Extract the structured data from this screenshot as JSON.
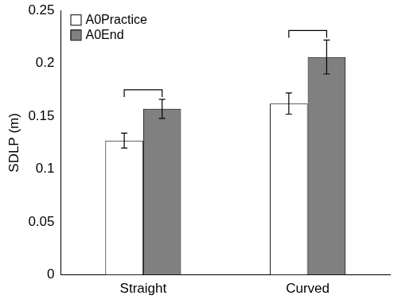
{
  "chart_data": {
    "type": "bar",
    "y_label": "SDLP (m)",
    "categories": [
      "Straight",
      "Curved"
    ],
    "series": [
      {
        "name": "A0Practice",
        "color": "#ffffff",
        "values": [
          0.127,
          0.162
        ],
        "errors": [
          0.007,
          0.01
        ]
      },
      {
        "name": "A0End",
        "color": "#808080",
        "values": [
          0.157,
          0.206
        ],
        "errors": [
          0.009,
          0.016
        ]
      }
    ],
    "ylim": [
      0,
      0.25
    ],
    "yticks": [
      0,
      0.05,
      0.1,
      0.15,
      0.2,
      0.25
    ],
    "grid": false,
    "legend": "top-left"
  }
}
